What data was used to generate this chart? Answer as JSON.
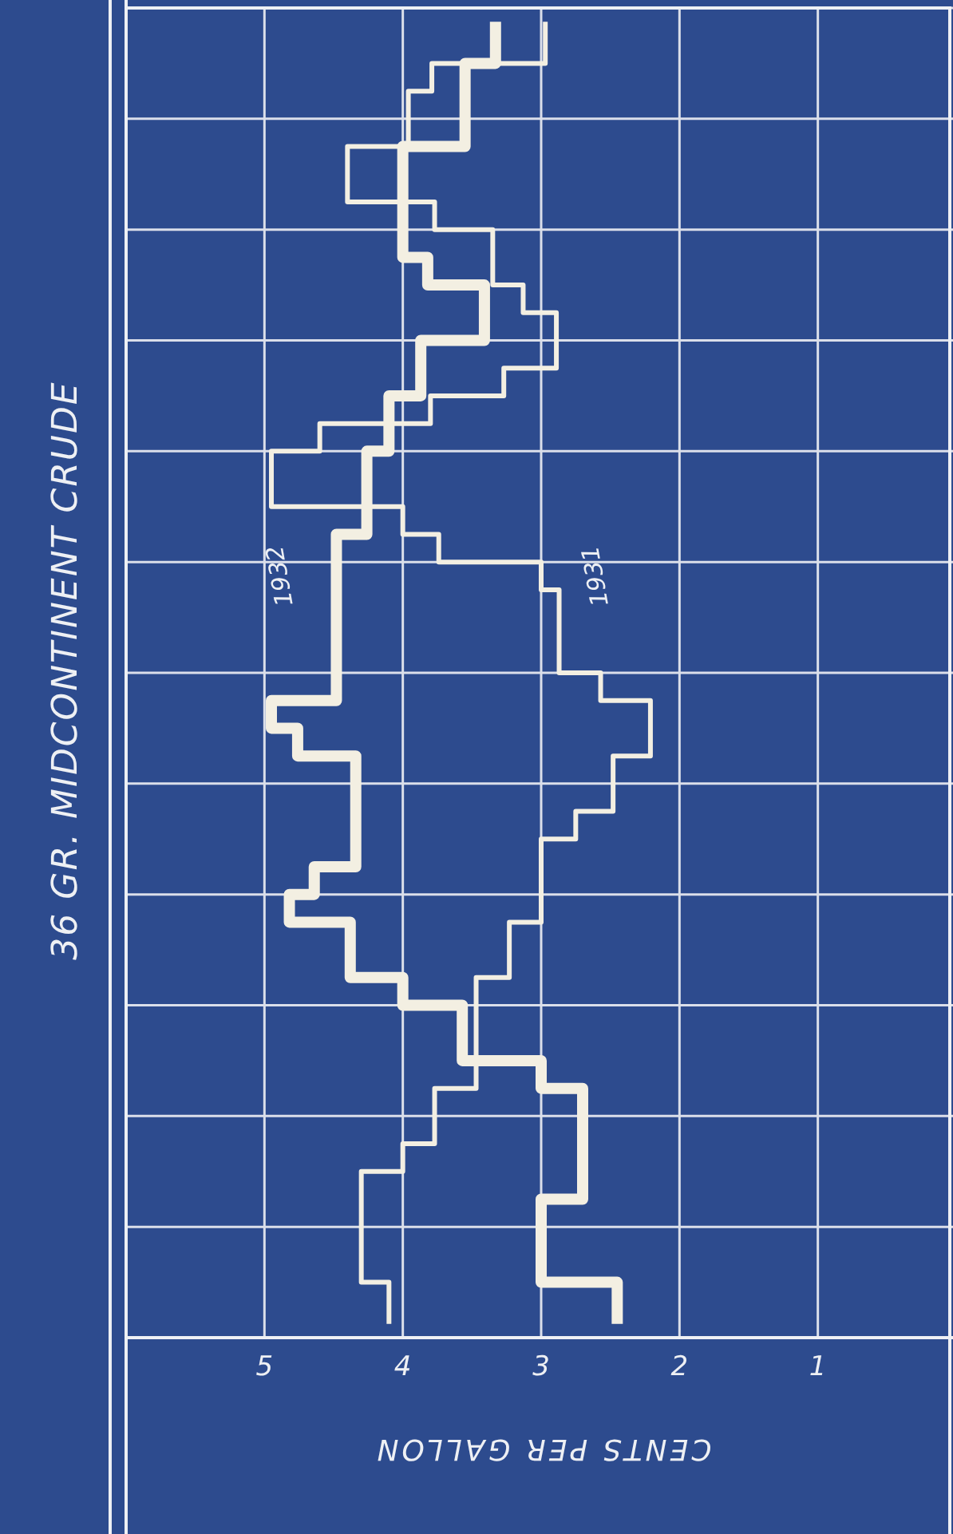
{
  "chart_data": {
    "type": "step",
    "orientation": "horizontal",
    "title": "36 GR. MIDCONTINENT CRUDE",
    "xlabel": "CENTS PER GALLON",
    "categories": [
      null,
      null,
      null,
      null,
      null,
      null,
      null,
      null,
      null,
      null,
      null,
      null,
      null,
      null,
      null,
      null,
      null,
      null,
      null,
      null,
      null,
      null,
      null,
      null,
      null,
      null,
      null,
      null,
      null,
      null,
      null,
      null,
      null,
      null,
      null,
      null,
      null,
      null,
      null,
      null,
      null,
      null,
      null,
      null,
      null,
      null,
      null,
      null
    ],
    "xlim": [
      6,
      0
    ],
    "xticks": [
      5,
      4,
      3,
      2,
      1
    ],
    "grid": true,
    "tick_labels": "x",
    "series": [
      {
        "name": "1931",
        "color": "#f3efe2",
        "values": [
          2.97,
          2.97,
          3.79,
          3.96,
          3.96,
          4.4,
          4.4,
          3.77,
          3.35,
          3.35,
          3.13,
          2.89,
          2.89,
          3.27,
          3.8,
          4.6,
          4.95,
          4.95,
          4.0,
          3.74,
          3.0,
          2.87,
          2.87,
          2.87,
          2.57,
          2.21,
          2.21,
          2.48,
          2.48,
          2.75,
          3.0,
          3.0,
          3.0,
          3.23,
          3.23,
          3.47,
          3.47,
          3.47,
          3.47,
          3.77,
          3.77,
          4.0,
          4.3,
          4.3,
          4.3,
          4.3,
          4.1,
          4.1
        ]
      },
      {
        "name": "1932",
        "color": "#f3efe2",
        "values": [
          3.33,
          3.33,
          3.55,
          3.55,
          3.55,
          4.0,
          4.0,
          4.0,
          4.0,
          3.82,
          3.41,
          3.41,
          3.87,
          3.87,
          4.1,
          4.1,
          4.26,
          4.26,
          4.26,
          4.48,
          4.48,
          4.48,
          4.48,
          4.48,
          4.48,
          4.95,
          4.76,
          4.34,
          4.34,
          4.34,
          4.34,
          4.64,
          4.82,
          4.38,
          4.38,
          4.0,
          3.57,
          3.57,
          3.0,
          2.7,
          2.7,
          2.7,
          2.7,
          3.0,
          3.0,
          3.0,
          2.45,
          2.45
        ]
      }
    ]
  }
}
